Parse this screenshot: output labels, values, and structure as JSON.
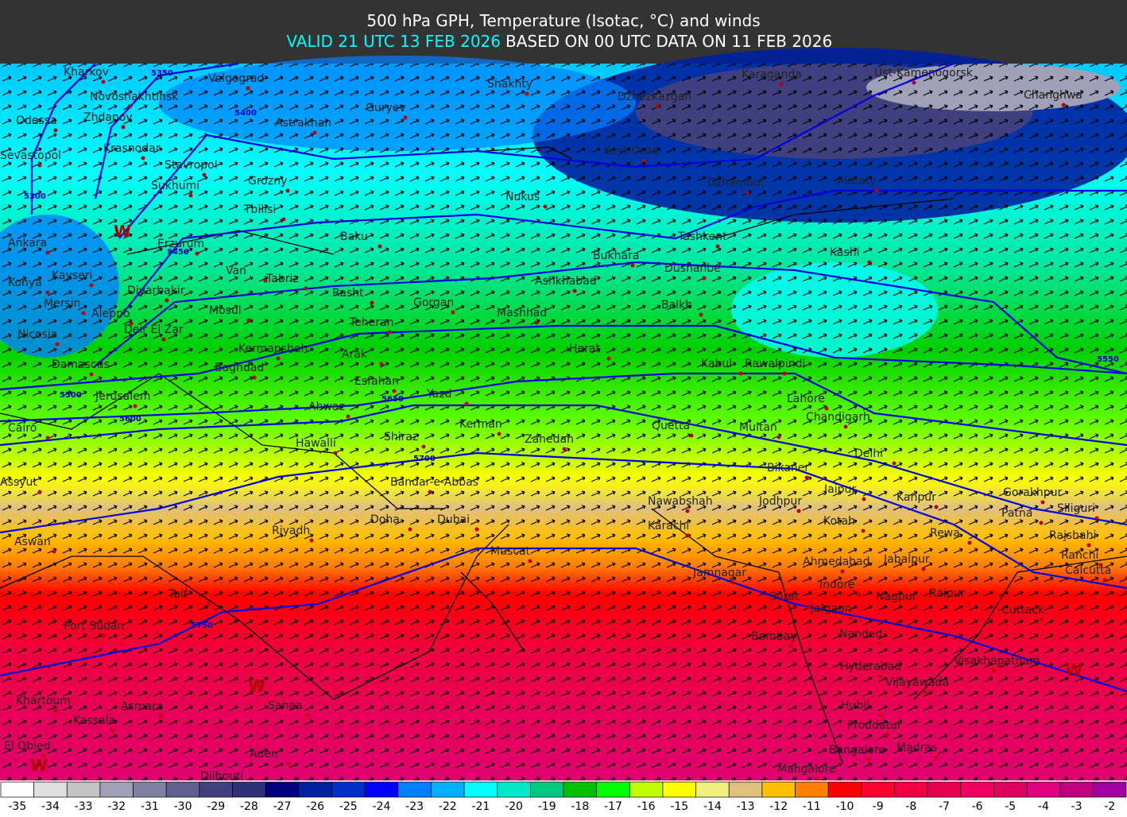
{
  "header": {
    "title": "500 hPa GPH, Temperature (Isotac, °C) and winds",
    "valid": "VALID 21 UTC 13 FEB 2026",
    "based": "BASED ON 00 UTC DATA ON 11 FEB 2026"
  },
  "contours": [
    5300,
    5350,
    5400,
    5450,
    5500,
    5550,
    5600,
    5650,
    5700,
    5750
  ],
  "pressure_systems": [
    "W",
    "W",
    "W",
    "W"
  ],
  "cities": [
    "Kharkov",
    "Volgograd",
    "Shakhty",
    "Karaganda",
    "Ust-Kamenogorsk",
    "Novoshakhtinsk",
    "Dzhezkazgan",
    "Changhwa",
    "Odessa",
    "Zhdanov",
    "Astrakhan",
    "Guryev",
    "Sevastopol",
    "Krasnodar",
    "Kzyl-Orda",
    "Stavropol",
    "Sukhumi",
    "Grozny",
    "Nukus",
    "Dzhambul",
    "Almaty",
    "Ankara",
    "Tbilisi",
    "Erzurum",
    "Baku",
    "Tashkent",
    "Kashi",
    "Bukhara",
    "Konya",
    "Kayseri",
    "Van",
    "Tabriz",
    "Dushanbe",
    "Mersin",
    "Diyarbakir",
    "Rasht",
    "Ashkhabad",
    "Gorgan",
    "Aleppo",
    "Mosul",
    "Balkh",
    "Nicosia",
    "Deir El Zar",
    "Mashhad",
    "Teheran",
    "Kermanshah",
    "Arak",
    "Herat",
    "Damascus",
    "Baghdad",
    "Kabul",
    "Rawalpindi",
    "Esfahan",
    "Yazd",
    "Lahore",
    "Jerusalem",
    "Ahwaz",
    "Chandigarh",
    "Cairo",
    "Kerman",
    "Quetta",
    "Multan",
    "Hawalli",
    "Shiraz",
    "Zahedan",
    "Delhi",
    "Bikaner",
    "Assyut",
    "Bandar-e-Abbas",
    "Jaipur",
    "Kanpur",
    "Gorakhpur",
    "Siliguri",
    "Nawabshah",
    "Jodhpur",
    "Patna",
    "Doha",
    "Dubai",
    "Riyadh",
    "Karachi",
    "Kotah",
    "Rewa",
    "Rajshahi",
    "Aswan",
    "Ranchi",
    "Muscat",
    "Ahmedabad",
    "Jabalpur",
    "Calcutta",
    "Jamnagar",
    "Taif",
    "Indore",
    "Surat",
    "Nagpur",
    "Raipur",
    "Jalgaon",
    "Cuttack",
    "Port Sudan",
    "Bombay",
    "Nanded",
    "Visakhapatnam",
    "Hyderabad",
    "Vijayawada",
    "Khartoum",
    "Sanaa",
    "Asmara",
    "Hubli",
    "Kassala",
    "Proddatur",
    "Bangalore",
    "Madras",
    "El Obied",
    "Aden",
    "Mangalore",
    "Djibouti"
  ],
  "legend": {
    "values": [
      -35,
      -34,
      -33,
      -32,
      -31,
      -30,
      -29,
      -28,
      -27,
      -26,
      -25,
      -24,
      -23,
      -22,
      -21,
      -20,
      -19,
      -18,
      -17,
      -16,
      -15,
      -14,
      -13,
      -12,
      -11,
      -10,
      -9,
      -8,
      -7,
      -6,
      -5,
      -4,
      -3,
      -2
    ],
    "colors": [
      "#ffffff",
      "#e0e0e0",
      "#c4c4c4",
      "#a0a0b8",
      "#8080a0",
      "#606090",
      "#404080",
      "#303078",
      "#000080",
      "#0020a0",
      "#0030c8",
      "#0000ff",
      "#0080ff",
      "#00b0ff",
      "#00ffff",
      "#00e8c8",
      "#00c880",
      "#00c000",
      "#00ff00",
      "#c0ff00",
      "#ffff00",
      "#f0f080",
      "#e0c080",
      "#ffc000",
      "#ff8000",
      "#ff0000",
      "#ff0030",
      "#f00040",
      "#e80050",
      "#f00060",
      "#e00060",
      "#e00080",
      "#c00080",
      "#a000a0"
    ]
  }
}
